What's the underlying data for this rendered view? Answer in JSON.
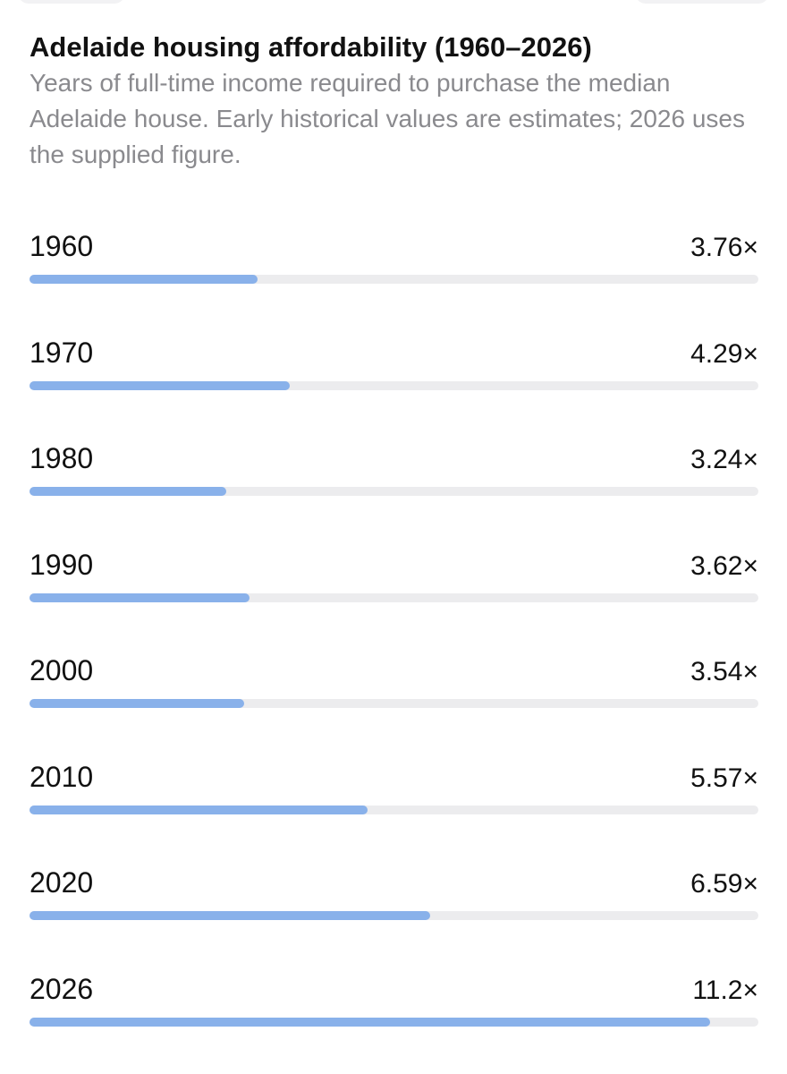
{
  "header": {
    "title": "Adelaide housing affordability (1960–2026)",
    "subtitle": "Years of full-time income required to purchase the median Adelaide house. Early historical values are estimates; 2026 uses the supplied figure."
  },
  "colors": {
    "bar_fill": "#89b1ea",
    "bar_track": "#ececee",
    "subtitle_text": "#8a8a8e"
  },
  "chart_data": {
    "type": "bar",
    "orientation": "horizontal",
    "title": "Adelaide housing affordability (1960–2026)",
    "subtitle": "Years of full-time income required to purchase the median Adelaide house. Early historical values are estimates; 2026 uses the supplied figure.",
    "categories": [
      "1960",
      "1970",
      "1980",
      "1990",
      "2000",
      "2010",
      "2020",
      "2026"
    ],
    "values": [
      3.76,
      4.29,
      3.24,
      3.62,
      3.54,
      5.57,
      6.59,
      11.2
    ],
    "value_labels": [
      "3.76×",
      "4.29×",
      "3.24×",
      "3.62×",
      "3.54×",
      "5.57×",
      "6.59×",
      "11.2×"
    ],
    "xlim": [
      0,
      12
    ],
    "grid": false,
    "legend": "none"
  }
}
